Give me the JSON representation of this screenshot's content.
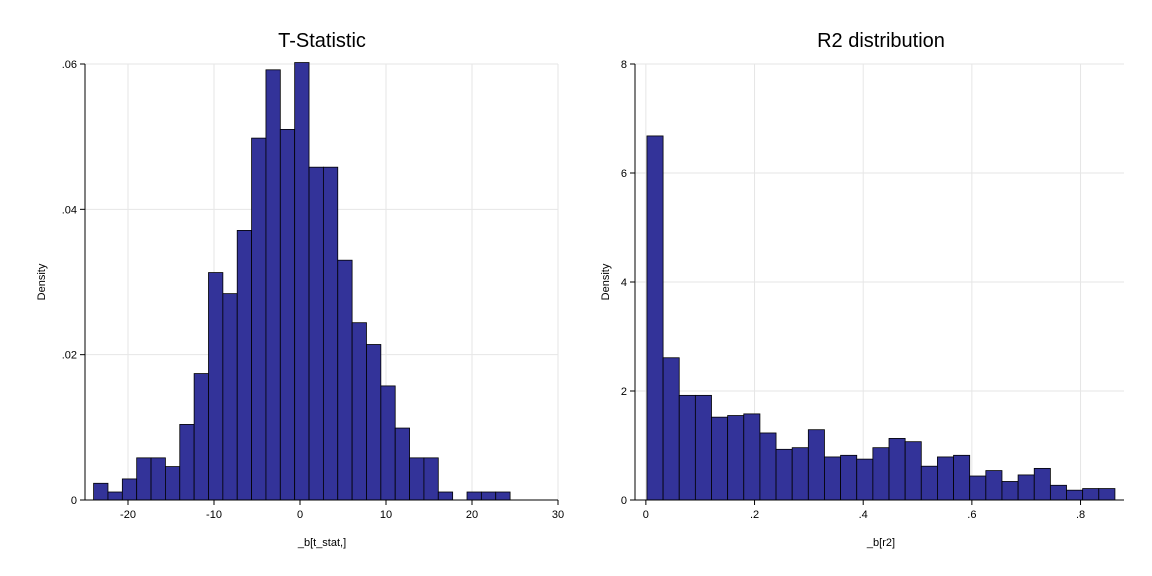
{
  "colors": {
    "bar_fill": "#333399",
    "bar_stroke": "#000000",
    "grid": "#e6e6e6",
    "background": "#ffffff"
  },
  "chart_data": [
    {
      "type": "bar",
      "title": "T-Statistic",
      "xlabel": "_b[t_stat,]",
      "ylabel": "Density",
      "xlim": [
        -25,
        30
      ],
      "ylim": [
        0,
        0.06
      ],
      "xticks": [
        -20,
        -10,
        0,
        10,
        20,
        30
      ],
      "xtick_labels": [
        "-20",
        "-10",
        "0",
        "10",
        "20",
        "30"
      ],
      "yticks": [
        0,
        0.02,
        0.04,
        0.06
      ],
      "ytick_labels": [
        "0",
        ".02",
        ".04",
        ".06"
      ],
      "grid": true,
      "bin_start": -24,
      "bin_width": 1.67,
      "values": [
        0.0023,
        0.0011,
        0.0029,
        0.0058,
        0.0058,
        0.0046,
        0.0104,
        0.0174,
        0.0313,
        0.0284,
        0.0371,
        0.0498,
        0.0592,
        0.051,
        0.0602,
        0.0458,
        0.0458,
        0.033,
        0.0244,
        0.0214,
        0.0157,
        0.0099,
        0.0058,
        0.0058,
        0.0011,
        0,
        0.0011,
        0.0011,
        0.0011
      ]
    },
    {
      "type": "bar",
      "title": "R2 distribution",
      "xlabel": "_b[r2]",
      "ylabel": "Density",
      "xlim": [
        -0.02,
        0.88
      ],
      "ylim": [
        0,
        8
      ],
      "xticks": [
        0,
        0.2,
        0.4,
        0.6,
        0.8
      ],
      "xtick_labels": [
        "0",
        ".2",
        ".4",
        ".6",
        ".8"
      ],
      "yticks": [
        0,
        2,
        4,
        6,
        8
      ],
      "ytick_labels": [
        "0",
        "2",
        "4",
        "6",
        "8"
      ],
      "grid": true,
      "bin_start": 0.002,
      "bin_width": 0.0297,
      "values": [
        6.68,
        2.61,
        1.92,
        1.92,
        1.52,
        1.55,
        1.58,
        1.23,
        0.93,
        0.96,
        1.29,
        0.79,
        0.82,
        0.75,
        0.96,
        1.13,
        1.07,
        0.62,
        0.79,
        0.82,
        0.44,
        0.54,
        0.34,
        0.46,
        0.58,
        0.27,
        0.18,
        0.21,
        0.21
      ]
    }
  ]
}
